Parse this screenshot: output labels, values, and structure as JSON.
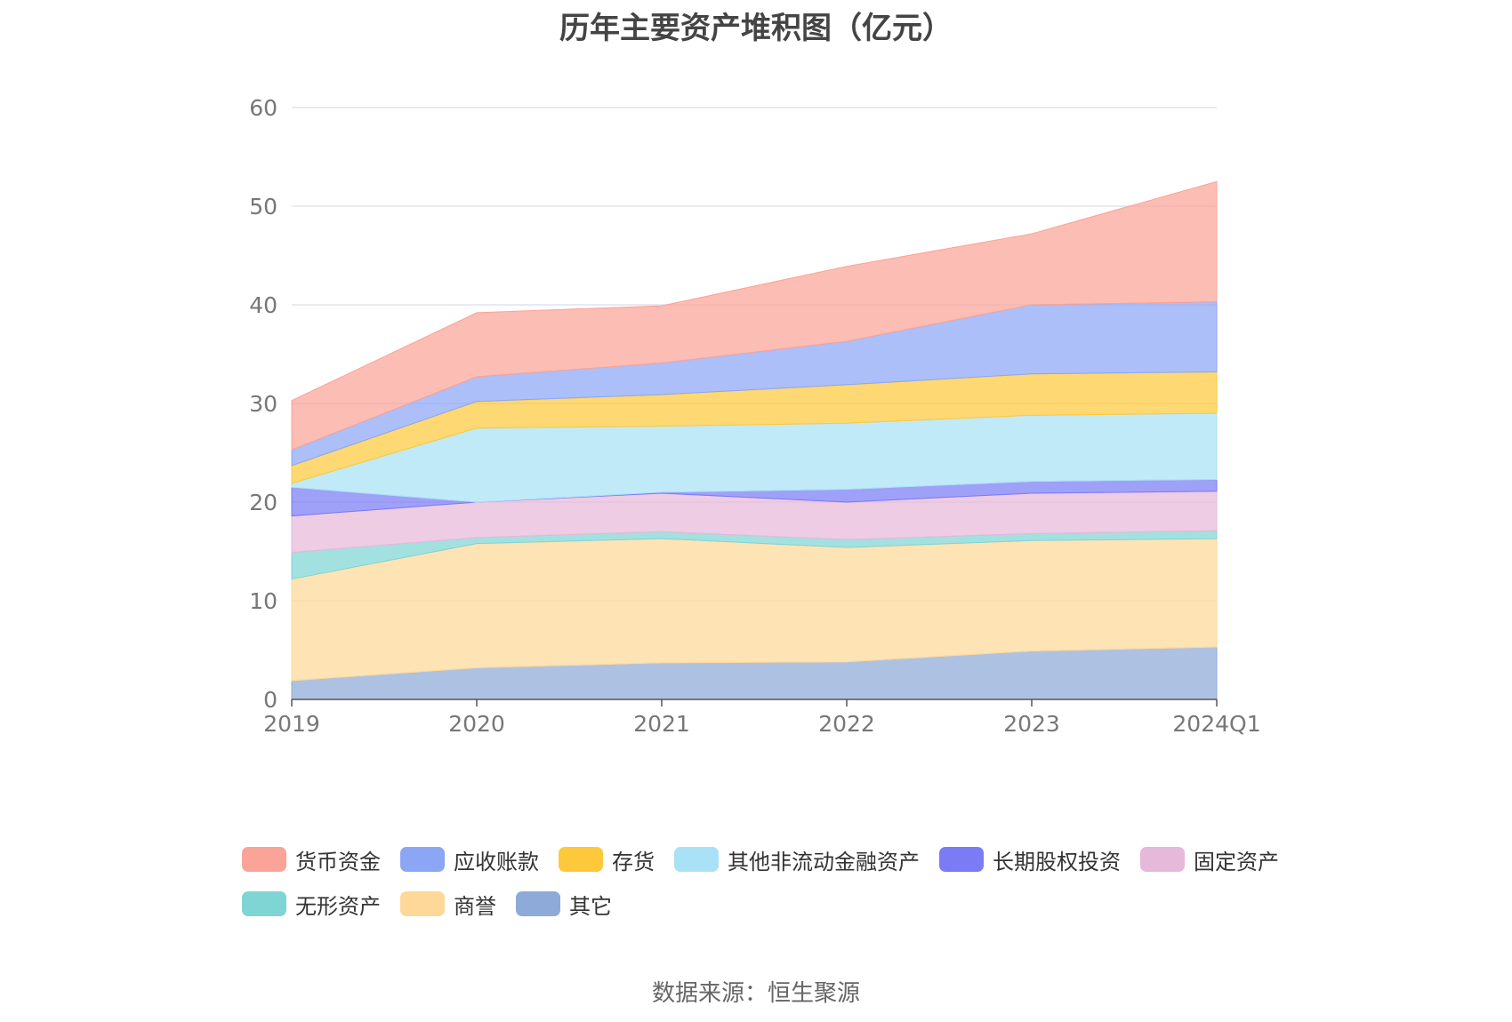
{
  "title": "历年主要资产堆积图（亿元）",
  "source": "数据来源：恒生聚源",
  "chart_data": {
    "type": "area",
    "stacked": true,
    "title": "历年主要资产堆积图（亿元）",
    "categories": [
      "2019",
      "2020",
      "2021",
      "2022",
      "2023",
      "2024Q1"
    ],
    "yticks": [
      0,
      10,
      20,
      30,
      40,
      50,
      60
    ],
    "ylim": [
      0,
      60
    ],
    "grid": true,
    "legend_position": "bottom",
    "series": [
      {
        "name": "其它",
        "color": "#8eaad8",
        "values": [
          1.9,
          3.2,
          3.7,
          3.8,
          4.9,
          5.3
        ]
      },
      {
        "name": "商誉",
        "color": "#fdd898",
        "values": [
          10.3,
          12.6,
          12.6,
          11.6,
          11.2,
          11.0
        ]
      },
      {
        "name": "无形资产",
        "color": "#7fd5d4",
        "values": [
          2.7,
          0.6,
          0.7,
          0.8,
          0.7,
          0.8
        ]
      },
      {
        "name": "固定资产",
        "color": "#e6b8d9",
        "values": [
          3.7,
          3.6,
          3.9,
          3.8,
          4.1,
          4.0
        ]
      },
      {
        "name": "长期股权投资",
        "color": "#7a7bf5",
        "values": [
          2.9,
          0.0,
          0.1,
          1.3,
          1.2,
          1.2
        ]
      },
      {
        "name": "其他非流动金融资产",
        "color": "#a9e2f7",
        "values": [
          0.4,
          7.5,
          6.7,
          6.7,
          6.7,
          6.7
        ]
      },
      {
        "name": "存货",
        "color": "#fdc93b",
        "values": [
          1.8,
          2.7,
          3.2,
          3.9,
          4.2,
          4.2
        ]
      },
      {
        "name": "应收账款",
        "color": "#8ca6f6",
        "values": [
          1.6,
          2.5,
          3.2,
          4.4,
          7.0,
          7.1
        ]
      },
      {
        "name": "货币资金",
        "color": "#f9a497",
        "values": [
          5.0,
          6.5,
          5.8,
          7.6,
          7.2,
          12.2
        ]
      }
    ]
  },
  "legend": [
    {
      "label": "货币资金",
      "color": "#f9a497"
    },
    {
      "label": "应收账款",
      "color": "#8ca6f6"
    },
    {
      "label": "存货",
      "color": "#fdc93b"
    },
    {
      "label": "其他非流动金融资产",
      "color": "#a9e2f7"
    },
    {
      "label": "长期股权投资",
      "color": "#7a7bf5"
    },
    {
      "label": "固定资产",
      "color": "#e6b8d9"
    },
    {
      "label": "无形资产",
      "color": "#7fd5d4"
    },
    {
      "label": "商誉",
      "color": "#fdd898"
    },
    {
      "label": "其它",
      "color": "#8eaad8"
    }
  ]
}
